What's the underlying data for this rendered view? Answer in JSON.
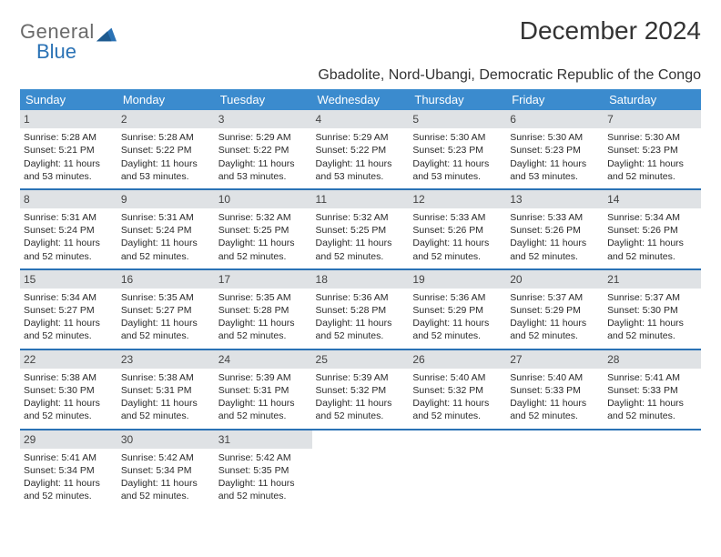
{
  "brand": {
    "top": "General",
    "bottom": "Blue"
  },
  "title": "December 2024",
  "subtitle": "Gbadolite, Nord-Ubangi, Democratic Republic of the Congo",
  "colors": {
    "header_bg": "#3b8bce",
    "header_fg": "#ffffff",
    "row_sep": "#2a72b5",
    "daynum_bg": "#dfe2e5",
    "brand_top": "#6a6a6a",
    "brand_bottom": "#2a72b5",
    "page_bg": "#ffffff"
  },
  "weekdays": [
    "Sunday",
    "Monday",
    "Tuesday",
    "Wednesday",
    "Thursday",
    "Friday",
    "Saturday"
  ],
  "weeks": [
    [
      {
        "n": "1",
        "sr": "5:28 AM",
        "ss": "5:21 PM",
        "dl": "11 hours and 53 minutes."
      },
      {
        "n": "2",
        "sr": "5:28 AM",
        "ss": "5:22 PM",
        "dl": "11 hours and 53 minutes."
      },
      {
        "n": "3",
        "sr": "5:29 AM",
        "ss": "5:22 PM",
        "dl": "11 hours and 53 minutes."
      },
      {
        "n": "4",
        "sr": "5:29 AM",
        "ss": "5:22 PM",
        "dl": "11 hours and 53 minutes."
      },
      {
        "n": "5",
        "sr": "5:30 AM",
        "ss": "5:23 PM",
        "dl": "11 hours and 53 minutes."
      },
      {
        "n": "6",
        "sr": "5:30 AM",
        "ss": "5:23 PM",
        "dl": "11 hours and 53 minutes."
      },
      {
        "n": "7",
        "sr": "5:30 AM",
        "ss": "5:23 PM",
        "dl": "11 hours and 52 minutes."
      }
    ],
    [
      {
        "n": "8",
        "sr": "5:31 AM",
        "ss": "5:24 PM",
        "dl": "11 hours and 52 minutes."
      },
      {
        "n": "9",
        "sr": "5:31 AM",
        "ss": "5:24 PM",
        "dl": "11 hours and 52 minutes."
      },
      {
        "n": "10",
        "sr": "5:32 AM",
        "ss": "5:25 PM",
        "dl": "11 hours and 52 minutes."
      },
      {
        "n": "11",
        "sr": "5:32 AM",
        "ss": "5:25 PM",
        "dl": "11 hours and 52 minutes."
      },
      {
        "n": "12",
        "sr": "5:33 AM",
        "ss": "5:26 PM",
        "dl": "11 hours and 52 minutes."
      },
      {
        "n": "13",
        "sr": "5:33 AM",
        "ss": "5:26 PM",
        "dl": "11 hours and 52 minutes."
      },
      {
        "n": "14",
        "sr": "5:34 AM",
        "ss": "5:26 PM",
        "dl": "11 hours and 52 minutes."
      }
    ],
    [
      {
        "n": "15",
        "sr": "5:34 AM",
        "ss": "5:27 PM",
        "dl": "11 hours and 52 minutes."
      },
      {
        "n": "16",
        "sr": "5:35 AM",
        "ss": "5:27 PM",
        "dl": "11 hours and 52 minutes."
      },
      {
        "n": "17",
        "sr": "5:35 AM",
        "ss": "5:28 PM",
        "dl": "11 hours and 52 minutes."
      },
      {
        "n": "18",
        "sr": "5:36 AM",
        "ss": "5:28 PM",
        "dl": "11 hours and 52 minutes."
      },
      {
        "n": "19",
        "sr": "5:36 AM",
        "ss": "5:29 PM",
        "dl": "11 hours and 52 minutes."
      },
      {
        "n": "20",
        "sr": "5:37 AM",
        "ss": "5:29 PM",
        "dl": "11 hours and 52 minutes."
      },
      {
        "n": "21",
        "sr": "5:37 AM",
        "ss": "5:30 PM",
        "dl": "11 hours and 52 minutes."
      }
    ],
    [
      {
        "n": "22",
        "sr": "5:38 AM",
        "ss": "5:30 PM",
        "dl": "11 hours and 52 minutes."
      },
      {
        "n": "23",
        "sr": "5:38 AM",
        "ss": "5:31 PM",
        "dl": "11 hours and 52 minutes."
      },
      {
        "n": "24",
        "sr": "5:39 AM",
        "ss": "5:31 PM",
        "dl": "11 hours and 52 minutes."
      },
      {
        "n": "25",
        "sr": "5:39 AM",
        "ss": "5:32 PM",
        "dl": "11 hours and 52 minutes."
      },
      {
        "n": "26",
        "sr": "5:40 AM",
        "ss": "5:32 PM",
        "dl": "11 hours and 52 minutes."
      },
      {
        "n": "27",
        "sr": "5:40 AM",
        "ss": "5:33 PM",
        "dl": "11 hours and 52 minutes."
      },
      {
        "n": "28",
        "sr": "5:41 AM",
        "ss": "5:33 PM",
        "dl": "11 hours and 52 minutes."
      }
    ],
    [
      {
        "n": "29",
        "sr": "5:41 AM",
        "ss": "5:34 PM",
        "dl": "11 hours and 52 minutes."
      },
      {
        "n": "30",
        "sr": "5:42 AM",
        "ss": "5:34 PM",
        "dl": "11 hours and 52 minutes."
      },
      {
        "n": "31",
        "sr": "5:42 AM",
        "ss": "5:35 PM",
        "dl": "11 hours and 52 minutes."
      },
      null,
      null,
      null,
      null
    ]
  ],
  "labels": {
    "sunrise": "Sunrise:",
    "sunset": "Sunset:",
    "daylight": "Daylight:"
  }
}
